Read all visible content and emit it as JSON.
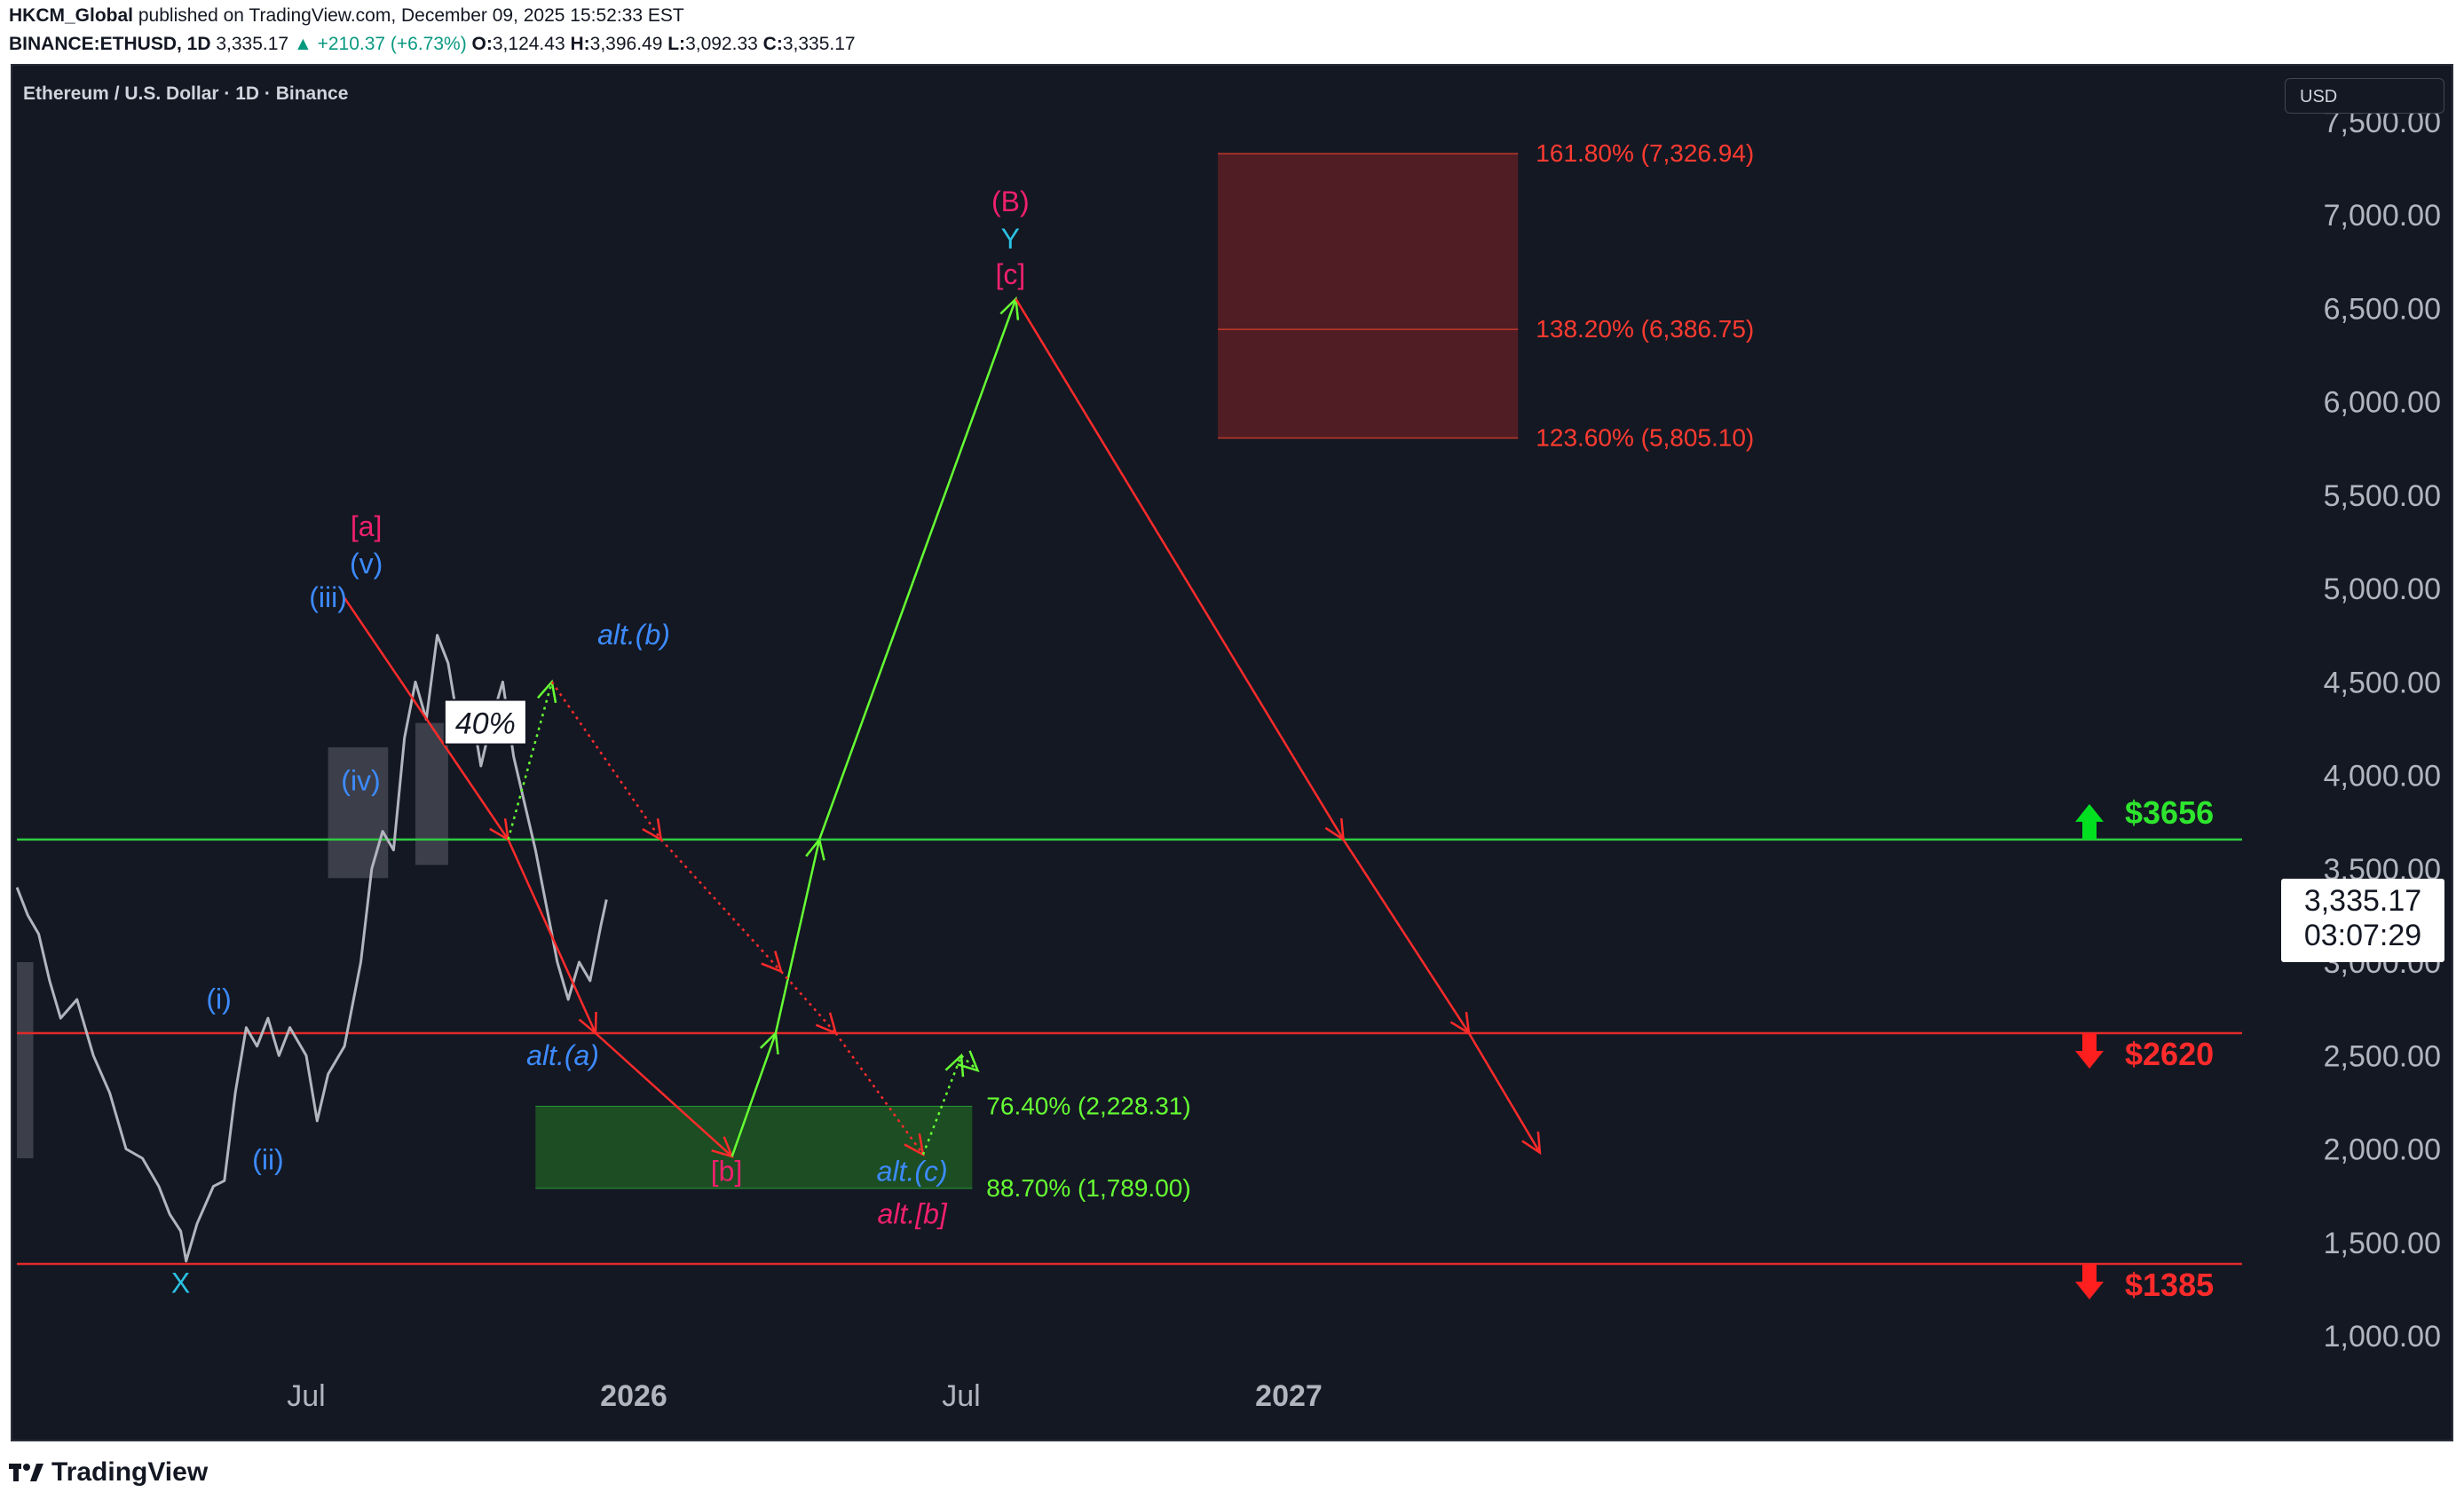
{
  "header": {
    "publisher": "HKCM_Global",
    "published_text": "published on TradingView.com, December 09, 2025 15:52:33 EST",
    "ticker": "BINANCE:ETHUSD, 1D",
    "last": "3,335.17",
    "change": "▲ +210.37 (+6.73%)",
    "o_label": "O:",
    "o_value": "3,124.43",
    "h_label": "H:",
    "h_value": "3,396.49",
    "l_label": "L:",
    "l_value": "3,092.33",
    "c_label": "C:",
    "c_value": "3,335.17"
  },
  "symbol_title": "Ethereum / U.S. Dollar · 1D · Binance",
  "currency": "USD",
  "price_box": {
    "price": "3,335.17",
    "countdown": "03:07:29"
  },
  "footer": {
    "brand": "TradingView"
  },
  "colors": {
    "background": "#141823",
    "candles": "#b2b5be",
    "bull_path": "#66ff33",
    "bear_path": "#ff2b2b",
    "resistance": "#2ecc40",
    "support": "#e02b2b",
    "wave_blue": "#3d8bff",
    "wave_pink": "#f0206c",
    "wave_cyan": "#2bc2e4",
    "target_zone": "#5a1e24",
    "support_zone": "#1d5323"
  },
  "chart_data": {
    "type": "line",
    "y_axis": {
      "min": 750,
      "max": 7550,
      "ticks": [
        "7,500.00",
        "7,000.00",
        "6,500.00",
        "6,000.00",
        "5,500.00",
        "5,000.00",
        "4,500.00",
        "4,000.00",
        "3,500.00",
        "3,000.00",
        "2,500.00",
        "2,000.00",
        "1,500.00",
        "1,000.00"
      ],
      "tick_values": [
        7500,
        7000,
        6500,
        6000,
        5500,
        5000,
        4500,
        4000,
        3500,
        3000,
        2500,
        2000,
        1500,
        1000
      ]
    },
    "x_axis": {
      "labels": [
        {
          "text": "Jul",
          "t": 6.5,
          "bold": false
        },
        {
          "text": "2026",
          "t": 12.5,
          "bold": true
        },
        {
          "text": "Jul",
          "t": 18.5,
          "bold": false
        },
        {
          "text": "2027",
          "t": 24.5,
          "bold": true
        }
      ],
      "t_min": 1.2,
      "t_max": 36,
      "t_unit": "months since Jan 2025"
    },
    "price_history": [
      [
        1.2,
        3400
      ],
      [
        1.4,
        3250
      ],
      [
        1.6,
        3150
      ],
      [
        1.8,
        2900
      ],
      [
        2.0,
        2700
      ],
      [
        2.3,
        2800
      ],
      [
        2.6,
        2500
      ],
      [
        2.9,
        2300
      ],
      [
        3.2,
        2000
      ],
      [
        3.5,
        1950
      ],
      [
        3.8,
        1800
      ],
      [
        4.0,
        1650
      ],
      [
        4.2,
        1560
      ],
      [
        4.3,
        1400
      ],
      [
        4.5,
        1600
      ],
      [
        4.8,
        1800
      ],
      [
        5.0,
        1830
      ],
      [
        5.2,
        2300
      ],
      [
        5.4,
        2650
      ],
      [
        5.6,
        2550
      ],
      [
        5.8,
        2700
      ],
      [
        6.0,
        2500
      ],
      [
        6.2,
        2650
      ],
      [
        6.5,
        2500
      ],
      [
        6.7,
        2150
      ],
      [
        6.9,
        2400
      ],
      [
        7.2,
        2550
      ],
      [
        7.5,
        3000
      ],
      [
        7.7,
        3500
      ],
      [
        7.9,
        3700
      ],
      [
        8.1,
        3600
      ],
      [
        8.3,
        4200
      ],
      [
        8.5,
        4500
      ],
      [
        8.7,
        4300
      ],
      [
        8.9,
        4750
      ],
      [
        9.1,
        4600
      ],
      [
        9.3,
        4250
      ],
      [
        9.5,
        4400
      ],
      [
        9.7,
        4050
      ],
      [
        9.9,
        4300
      ],
      [
        10.1,
        4500
      ],
      [
        10.3,
        4100
      ],
      [
        10.5,
        3850
      ],
      [
        10.7,
        3600
      ],
      [
        10.9,
        3300
      ],
      [
        11.1,
        3000
      ],
      [
        11.3,
        2800
      ],
      [
        11.5,
        3000
      ],
      [
        11.7,
        2900
      ],
      [
        11.9,
        3200
      ],
      [
        12.0,
        3335
      ]
    ],
    "horizontal_levels": [
      {
        "label": "$3656",
        "value": 3656,
        "color": "#2ecc40",
        "arrow": "up"
      },
      {
        "label": "$2620",
        "value": 2620,
        "color": "#e02b2b",
        "arrow": "down"
      },
      {
        "label": "$1385",
        "value": 1385,
        "color": "#e02b2b",
        "arrow": "down"
      }
    ],
    "target_zone": {
      "t_start": 23.2,
      "t_end": 28.7,
      "low": 5805.1,
      "high": 7326.94,
      "mid": 6386.75,
      "labels": [
        "161.80% (7,326.94)",
        "138.20% (6,386.75)",
        "123.60% (5,805.10)"
      ],
      "label_values": [
        7326.94,
        6386.75,
        5805.1
      ]
    },
    "support_zone": {
      "t_start": 10.7,
      "t_end": 18.7,
      "low": 1789.0,
      "high": 2228.31,
      "labels": [
        "76.40% (2,228.31)",
        "88.70% (1,789.00)"
      ],
      "label_values": [
        2228.31,
        1789.0
      ]
    },
    "paths": [
      {
        "name": "bear-path-1",
        "color": "#ff2b2b",
        "style": "solid",
        "points": [
          [
            7.2,
            4950
          ],
          [
            10.2,
            3656
          ],
          [
            11.8,
            2620
          ],
          [
            14.3,
            1960
          ]
        ]
      },
      {
        "name": "bull-path",
        "color": "#66ff33",
        "style": "solid",
        "points": [
          [
            14.3,
            1960
          ],
          [
            15.1,
            2620
          ],
          [
            15.9,
            3656
          ],
          [
            19.5,
            6550
          ]
        ]
      },
      {
        "name": "bear-path-2",
        "color": "#ff2b2b",
        "style": "solid",
        "points": [
          [
            19.5,
            6550
          ],
          [
            25.5,
            3656
          ],
          [
            27.8,
            2620
          ],
          [
            29.1,
            1980
          ]
        ]
      },
      {
        "name": "alt-bull-dotted",
        "color": "#66ff33",
        "style": "dotted",
        "points": [
          [
            10.2,
            3656
          ],
          [
            11.0,
            4500
          ]
        ]
      },
      {
        "name": "alt-bear-dotted",
        "color": "#ff2b2b",
        "style": "dotted",
        "points": [
          [
            11.0,
            4500
          ],
          [
            13.0,
            3656
          ],
          [
            15.2,
            2950
          ],
          [
            16.2,
            2620
          ],
          [
            17.8,
            1970
          ]
        ]
      },
      {
        "name": "alt-bull-dotted-2",
        "color": "#66ff33",
        "style": "dotted",
        "points": [
          [
            17.8,
            1970
          ],
          [
            18.5,
            2500
          ],
          [
            18.8,
            2420
          ]
        ]
      }
    ],
    "boxes": [
      {
        "t1": 6.9,
        "t2": 8.0,
        "low": 3450,
        "high": 4150
      },
      {
        "t1": 8.5,
        "t2": 9.1,
        "low": 3520,
        "high": 4280
      },
      {
        "t1": 1.2,
        "t2": 1.5,
        "low": 1950,
        "high": 3000
      }
    ],
    "wave_labels": [
      {
        "text": "[a]",
        "t": 7.6,
        "v": 5280,
        "color": "#f0206c"
      },
      {
        "text": "(v)",
        "t": 7.6,
        "v": 5080,
        "color": "#3d8bff"
      },
      {
        "text": "(iii)",
        "t": 6.9,
        "v": 4900,
        "color": "#3d8bff"
      },
      {
        "text": "(iv)",
        "t": 7.5,
        "v": 3920,
        "color": "#3d8bff"
      },
      {
        "text": "(i)",
        "t": 4.9,
        "v": 2750,
        "color": "#3d8bff"
      },
      {
        "text": "(ii)",
        "t": 5.8,
        "v": 1890,
        "color": "#3d8bff"
      },
      {
        "text": "X",
        "t": 4.2,
        "v": 1230,
        "color": "#2bc2e4"
      },
      {
        "text": "alt.(a)",
        "t": 11.2,
        "v": 2450,
        "color": "#3d8bff",
        "italic": true
      },
      {
        "text": "alt.(b)",
        "t": 12.5,
        "v": 4700,
        "color": "#3d8bff",
        "italic": true
      },
      {
        "text": "[b]",
        "t": 14.2,
        "v": 1830,
        "color": "#f0206c"
      },
      {
        "text": "alt.(c)",
        "t": 17.6,
        "v": 1830,
        "color": "#3d8bff",
        "italic": true
      },
      {
        "text": "alt.[b]",
        "t": 17.6,
        "v": 1600,
        "color": "#f0206c",
        "italic": true
      },
      {
        "text": "(B)",
        "t": 19.4,
        "v": 7020,
        "color": "#f0206c"
      },
      {
        "text": "Y",
        "t": 19.4,
        "v": 6820,
        "color": "#2bc2e4"
      },
      {
        "text": "[c]",
        "t": 19.4,
        "v": 6630,
        "color": "#f0206c"
      }
    ],
    "annotation": {
      "text": "40%",
      "t": 9.75,
      "v": 4280
    }
  }
}
